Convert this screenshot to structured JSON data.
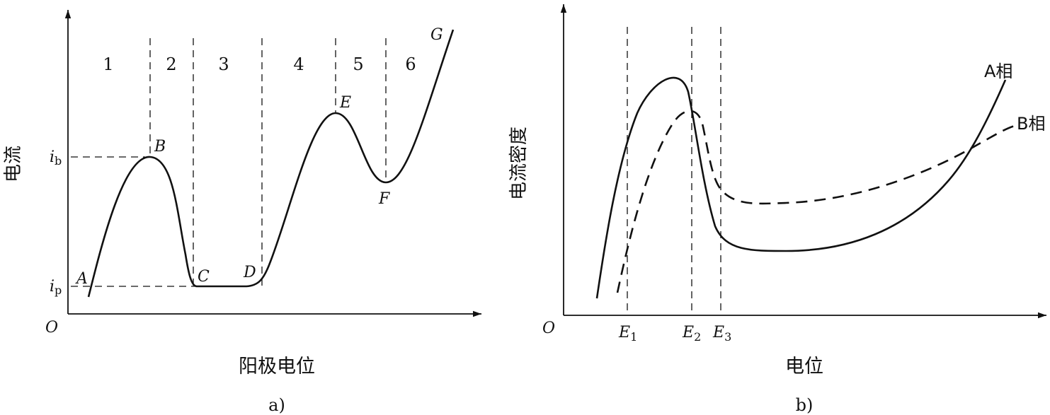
{
  "chart_data": [
    {
      "panel": "a)",
      "type": "line",
      "xlabel": "阳极电位",
      "ylabel": "电流",
      "origin": "O",
      "y_ticks": [
        {
          "base": "i",
          "sub": "b"
        },
        {
          "base": "i",
          "sub": "p"
        }
      ],
      "regions": [
        "1",
        "2",
        "3",
        "4",
        "5",
        "6"
      ],
      "points": [
        "A",
        "B",
        "C",
        "D",
        "E",
        "F",
        "G"
      ],
      "curve_x": [
        0.05,
        0.1,
        0.15,
        0.2,
        0.25,
        0.3,
        0.35,
        0.4,
        0.45,
        0.5,
        0.55,
        0.6,
        0.65,
        0.7,
        0.75,
        0.8,
        0.85,
        0.9,
        0.95,
        1.0
      ],
      "curve_y": [
        0.0,
        0.18,
        0.38,
        0.55,
        0.66,
        0.7,
        0.6,
        0.2,
        0.04,
        0.04,
        0.1,
        0.3,
        0.58,
        0.82,
        0.7,
        0.58,
        0.7,
        0.9,
        1.1,
        1.3
      ]
    },
    {
      "panel": "b)",
      "type": "line",
      "xlabel": "电位",
      "ylabel": "电流密度",
      "origin": "O",
      "x_ticks": [
        {
          "base": "E",
          "sub": "1"
        },
        {
          "base": "E",
          "sub": "2"
        },
        {
          "base": "E",
          "sub": "3"
        }
      ],
      "series": [
        {
          "name": "A相",
          "style": "solid",
          "x": [
            0.1,
            0.15,
            0.2,
            0.25,
            0.3,
            0.35,
            0.38,
            0.4,
            0.45,
            0.55,
            0.7,
            0.85,
            1.0
          ],
          "y": [
            0.0,
            0.5,
            0.78,
            0.9,
            0.85,
            0.5,
            0.28,
            0.22,
            0.18,
            0.18,
            0.24,
            0.45,
            0.82
          ]
        },
        {
          "name": "B相",
          "style": "dashed",
          "x": [
            0.13,
            0.2,
            0.25,
            0.3,
            0.34,
            0.37,
            0.4,
            0.45,
            0.55,
            0.7,
            0.85,
            1.0
          ],
          "y": [
            0.0,
            0.45,
            0.65,
            0.78,
            0.72,
            0.48,
            0.42,
            0.4,
            0.42,
            0.5,
            0.6,
            0.68
          ]
        }
      ]
    }
  ],
  "captions": {
    "a": "a)",
    "b": "b)"
  },
  "colors": {
    "ink": "#111111",
    "background": "#ffffff"
  }
}
